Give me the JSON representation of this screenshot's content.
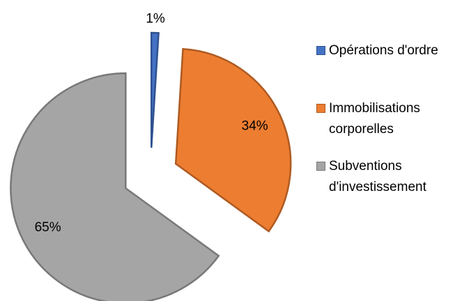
{
  "chart_data": {
    "type": "pie",
    "categories": [
      "Opérations d'ordre",
      "Immobilisations corporelles",
      "Subventions d'investissement"
    ],
    "values": [
      1,
      34,
      65
    ],
    "value_labels": [
      "1%",
      "34%",
      "65%"
    ],
    "colors": [
      "#4472c4",
      "#ed7d31",
      "#a5a5a5"
    ],
    "border_colors": [
      "#2f528f",
      "#ae5a21",
      "#787878"
    ],
    "exploded": true,
    "legend": "right"
  }
}
